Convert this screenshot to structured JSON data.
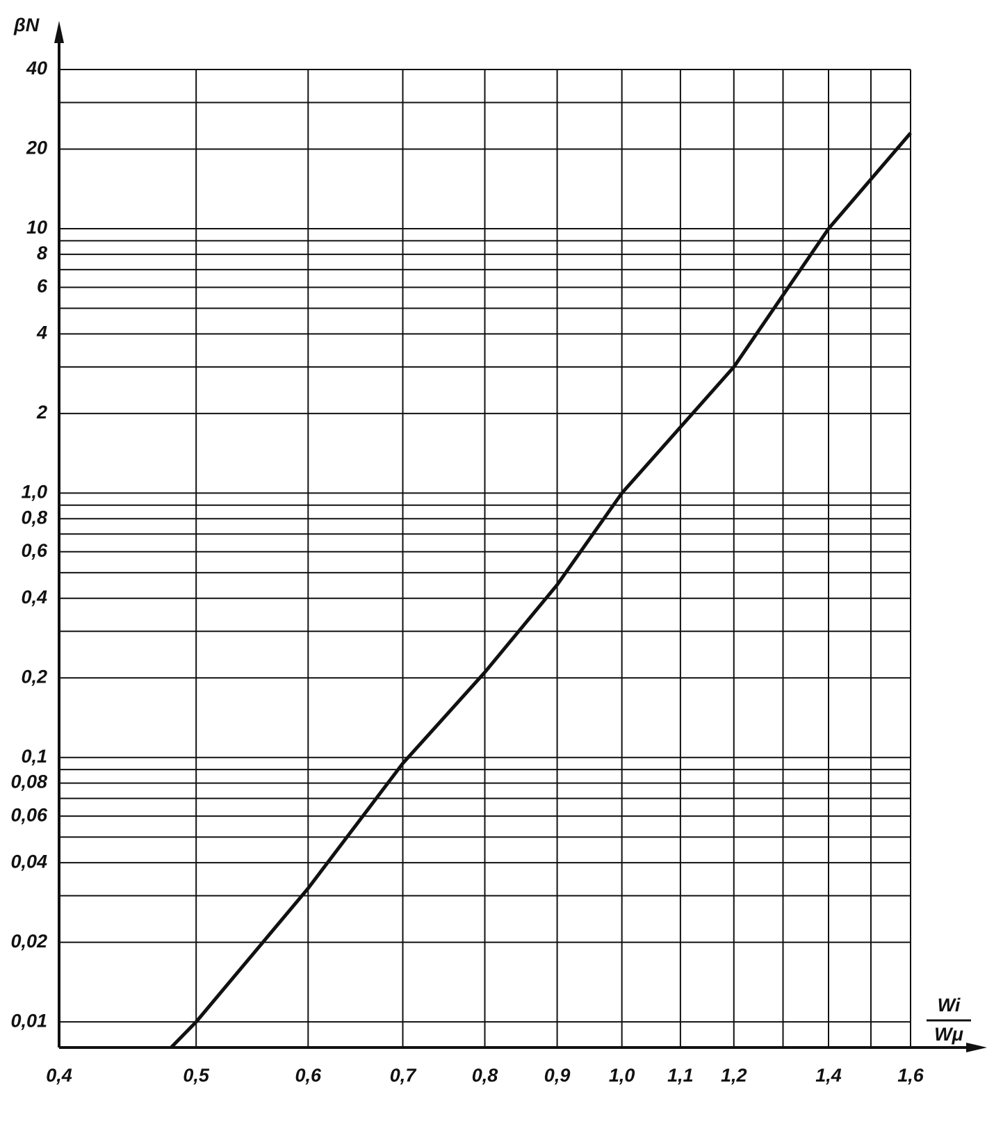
{
  "chart_data": {
    "type": "line",
    "ylabel": "βN",
    "xlabel": {
      "numerator": "Wi",
      "denominator": "Wμ"
    },
    "x": [
      0.48,
      0.5,
      0.6,
      0.7,
      0.8,
      0.9,
      1.0,
      1.2,
      1.4,
      1.6
    ],
    "values": [
      0.008,
      0.01,
      0.032,
      0.095,
      0.21,
      0.45,
      1.0,
      3.0,
      10,
      23
    ],
    "color": "#111111",
    "xscale": "log",
    "yscale": "log",
    "grid": true,
    "xlim": [
      0.4,
      1.6
    ],
    "ylim": [
      0.008,
      40
    ],
    "xticks": [
      {
        "value": 0.4,
        "label": "0,4"
      },
      {
        "value": 0.5,
        "label": "0,5"
      },
      {
        "value": 0.6,
        "label": "0,6"
      },
      {
        "value": 0.7,
        "label": "0,7"
      },
      {
        "value": 0.8,
        "label": "0,8"
      },
      {
        "value": 0.9,
        "label": "0,9"
      },
      {
        "value": 1.0,
        "label": "1,0"
      },
      {
        "value": 1.1,
        "label": "1,1"
      },
      {
        "value": 1.2,
        "label": "1,2"
      },
      {
        "value": 1.4,
        "label": "1,4"
      },
      {
        "value": 1.6,
        "label": "1,6"
      }
    ],
    "xminor": [
      1.3,
      1.5
    ],
    "yticks": [
      40,
      20,
      10,
      8,
      6,
      4,
      2,
      {
        "value": 1.0,
        "label": "1,0"
      },
      {
        "value": 0.8,
        "label": "0,8"
      },
      {
        "value": 0.6,
        "label": "0,6"
      },
      {
        "value": 0.4,
        "label": "0,4"
      },
      {
        "value": 0.2,
        "label": "0,2"
      },
      {
        "value": 0.1,
        "label": "0,1"
      },
      {
        "value": 0.08,
        "label": "0,08"
      },
      {
        "value": 0.06,
        "label": "0,06"
      },
      {
        "value": 0.04,
        "label": "0,04"
      },
      {
        "value": 0.02,
        "label": "0,02"
      },
      {
        "value": 0.01,
        "label": "0,01"
      }
    ],
    "yminor": [
      30,
      9,
      7,
      5,
      3,
      0.9,
      0.7,
      0.5,
      0.3,
      0.09,
      0.07,
      0.05,
      0.03
    ]
  }
}
